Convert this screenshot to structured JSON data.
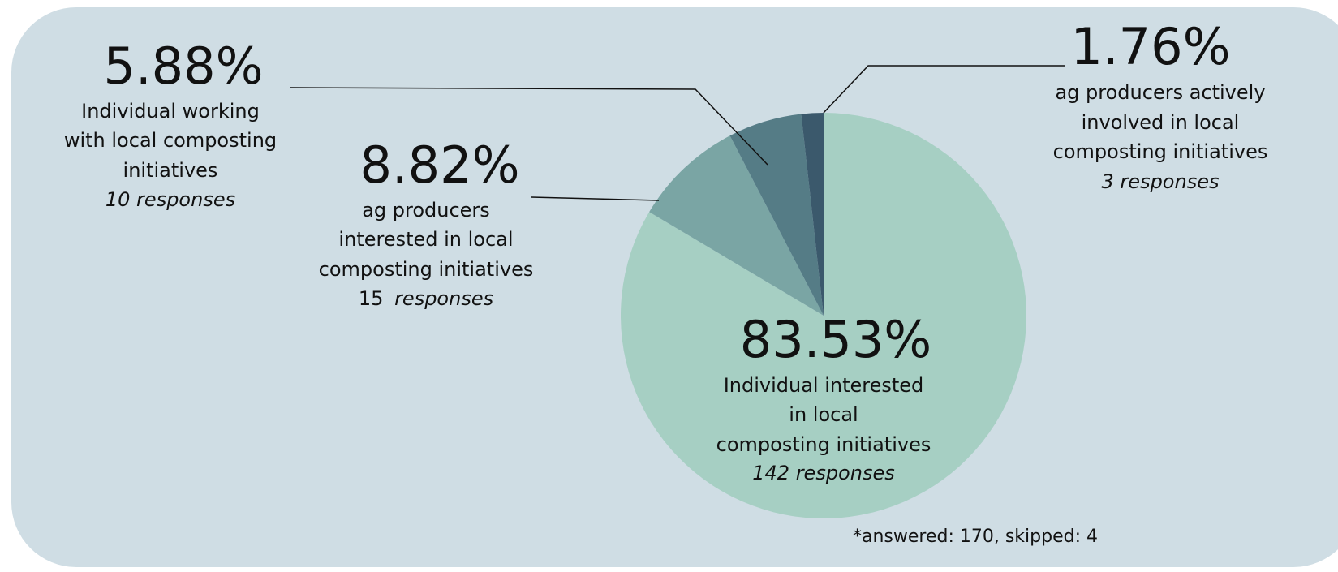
{
  "chart_data": {
    "type": "pie",
    "title": "",
    "slices": [
      {
        "percent_label": "83.53%",
        "value": 83.53,
        "label_lines": [
          "Individual interested",
          "in local",
          "composting initiatives"
        ],
        "responses_count": "",
        "responses_text": "142 responses",
        "color": "#a6cfc3"
      },
      {
        "percent_label": "8.82%",
        "value": 8.82,
        "label_lines": [
          "ag producers",
          "interested in local",
          "composting initiatives"
        ],
        "responses_count": "15",
        "responses_text": "responses",
        "color": "#7aa5a4"
      },
      {
        "percent_label": "5.88%",
        "value": 5.88,
        "label_lines": [
          "Individual working",
          "with local composting",
          "initiatives"
        ],
        "responses_count": "",
        "responses_text": "10 responses",
        "color": "#557c86"
      },
      {
        "percent_label": "1.76%",
        "value": 1.76,
        "label_lines": [
          "ag producers actively",
          "involved in local",
          "composting initiatives"
        ],
        "responses_count": "",
        "responses_text": "3 responses",
        "color": "#3b596c"
      }
    ],
    "footnote": "*answered: 170, skipped: 4"
  }
}
